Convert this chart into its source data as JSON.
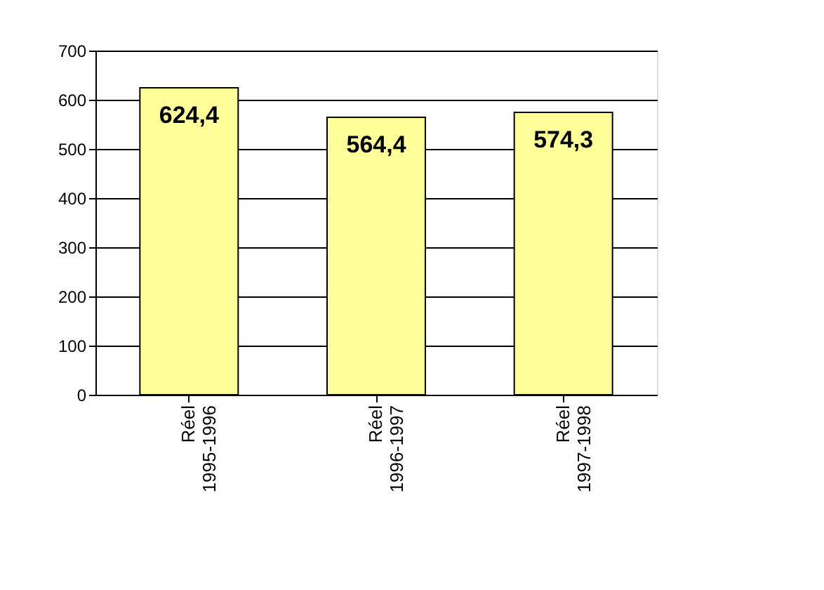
{
  "chart_data": {
    "type": "bar",
    "categories": [
      "Réel 1995-1996",
      "Réel 1996-1997",
      "Réel 1997-1998"
    ],
    "values": [
      624.4,
      564.4,
      574.3
    ],
    "value_labels": [
      "624,4",
      "564,4",
      "574,3"
    ],
    "color": "#ffff99",
    "ylim": [
      0,
      700
    ],
    "yticks": [
      0,
      100,
      200,
      300,
      400,
      500,
      600,
      700
    ],
    "grid": "y"
  }
}
